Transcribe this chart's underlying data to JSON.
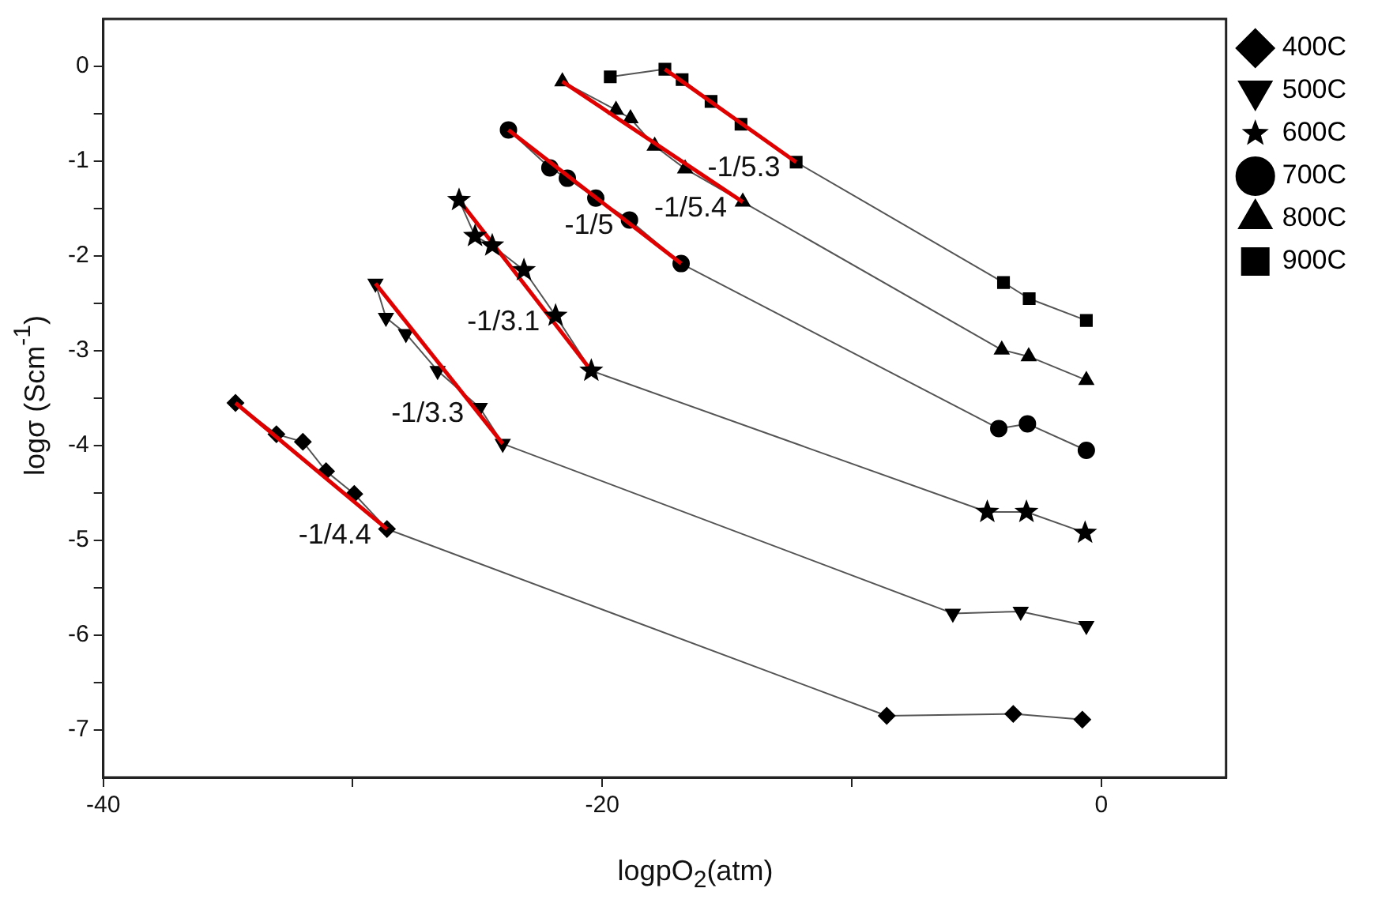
{
  "chart_data": {
    "type": "line",
    "xlabel": "logpO$_{2}$(atm)",
    "ylabel": "logσ (Scm$^{-1}$)",
    "xlim": [
      -40,
      5
    ],
    "xticks": [
      -40,
      {
        "value": -30,
        "label": null
      },
      -20,
      {
        "value": -10,
        "label": null
      },
      0
    ],
    "ylim": [
      -7.5,
      0.5
    ],
    "yticks": [
      0,
      {
        "value": -0.5,
        "label": null
      },
      -1,
      {
        "value": -1.5,
        "label": null
      },
      -2,
      {
        "value": -2.5,
        "label": null
      },
      -3,
      {
        "value": -3.5,
        "label": null
      },
      -4,
      {
        "value": -4.5,
        "label": null
      },
      -5,
      {
        "value": -5.5,
        "label": null
      },
      -6,
      {
        "value": -6.5,
        "label": null
      },
      -7
    ],
    "grid": false,
    "legend": "right",
    "line_style": "solid",
    "series": [
      {
        "name": "400C",
        "color": "#000000",
        "marker": "diamond",
        "x": [
          -34.7,
          -33.06,
          -32.0,
          -31.07,
          -29.94,
          -28.63,
          -8.6,
          -3.53,
          -0.76
        ],
        "values": [
          -3.55,
          -3.88,
          -3.96,
          -4.27,
          -4.51,
          -4.88,
          -6.85,
          -6.83,
          -6.89
        ]
      },
      {
        "name": "500C",
        "color": "#000000",
        "marker": "triangle-down",
        "x": [
          -29.09,
          -28.67,
          -27.87,
          -26.6,
          -24.91,
          -23.99,
          -5.95,
          -3.23,
          -0.6
        ],
        "values": [
          -2.29,
          -2.65,
          -2.82,
          -3.21,
          -3.6,
          -3.98,
          -5.77,
          -5.75,
          -5.9
        ]
      },
      {
        "name": "600C",
        "color": "#000000",
        "marker": "star",
        "x": [
          -25.74,
          -25.1,
          -24.41,
          -23.14,
          -21.87,
          -20.44,
          -4.57,
          -3.0,
          -0.65
        ],
        "values": [
          -1.41,
          -1.79,
          -1.89,
          -2.15,
          -2.63,
          -3.21,
          -4.7,
          -4.7,
          -4.92
        ]
      },
      {
        "name": "700C",
        "color": "#000000",
        "marker": "circle",
        "x": [
          -23.76,
          -22.1,
          -21.4,
          -20.26,
          -18.91,
          -16.84,
          -4.11,
          -2.96,
          -0.6
        ],
        "values": [
          -0.67,
          -1.07,
          -1.18,
          -1.39,
          -1.62,
          -2.08,
          -3.82,
          -3.77,
          -4.05
        ]
      },
      {
        "name": "800C",
        "color": "#000000",
        "marker": "triangle",
        "x": [
          -21.6,
          -19.45,
          -18.87,
          -17.9,
          -16.68,
          -14.37,
          -3.99,
          -2.91,
          -0.6
        ],
        "values": [
          -0.16,
          -0.46,
          -0.55,
          -0.84,
          -1.08,
          -1.43,
          -2.99,
          -3.06,
          -3.31
        ]
      },
      {
        "name": "900C",
        "color": "#000000",
        "marker": "square",
        "x": [
          -19.68,
          -17.49,
          -16.8,
          -15.64,
          -14.44,
          -12.23,
          -3.92,
          -2.89,
          -0.6
        ],
        "values": [
          -0.11,
          -0.03,
          -0.14,
          -0.37,
          -0.61,
          -1.01,
          -2.28,
          -2.45,
          -2.68
        ]
      },
      {
        "type": "line",
        "color": "#e00000",
        "marker": "none",
        "x": [
          -34.7,
          -28.63
        ],
        "values": [
          -3.55,
          -4.88
        ]
      },
      {
        "type": "line",
        "color": "#e00000",
        "marker": "none",
        "x": [
          -29.09,
          -23.99
        ],
        "values": [
          -2.29,
          -3.98
        ]
      },
      {
        "type": "line",
        "color": "#e00000",
        "marker": "none",
        "x": [
          -25.74,
          -20.44
        ],
        "values": [
          -1.41,
          -3.21
        ]
      },
      {
        "type": "line",
        "color": "#e00000",
        "marker": "none",
        "x": [
          -23.76,
          -16.84
        ],
        "values": [
          -0.67,
          -2.08
        ]
      },
      {
        "type": "line",
        "color": "#e00000",
        "marker": "none",
        "x": [
          -21.6,
          -14.37
        ],
        "values": [
          -0.16,
          -1.43
        ]
      },
      {
        "type": "line",
        "color": "#e00000",
        "marker": "none",
        "x": [
          -17.49,
          -12.23
        ],
        "values": [
          -0.03,
          -1.01
        ]
      }
    ],
    "annotations": [
      {
        "text": "-1/4.4",
        "x": -28.63,
        "y": -4.88
      },
      {
        "text": "-1/3.3",
        "x": -24.91,
        "y": -3.6
      },
      {
        "text": "-1/3.1",
        "x": -21.87,
        "y": -2.63
      },
      {
        "text": "-1/5",
        "x": -18.91,
        "y": -1.62
      },
      {
        "text": "-1/5.4",
        "x": -14.37,
        "y": -1.43
      },
      {
        "text": "-1/5.3",
        "x": -12.23,
        "y": -1.01
      }
    ]
  }
}
